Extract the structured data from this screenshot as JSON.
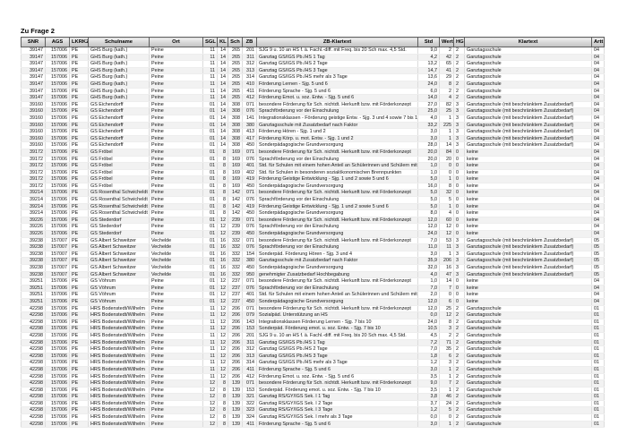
{
  "title": "Zu Frage 2",
  "klartext_values": {
    "ganztag": "Ganztagsschule",
    "ganztag_beschraenkt": "Ganztagsschule (mit beschränktem Zusatzbedarf)",
    "keine": "keine"
  },
  "table": {
    "columns": [
      {
        "key": "snr",
        "label": "SNR"
      },
      {
        "key": "ags",
        "label": "AGS"
      },
      {
        "key": "lkrkz",
        "label": "LKRKZ"
      },
      {
        "key": "schulname",
        "label": "Schulname"
      },
      {
        "key": "ort",
        "label": "Ort"
      },
      {
        "key": "sgl",
        "label": "SGL"
      },
      {
        "key": "kl",
        "label": "KL"
      },
      {
        "key": "sch",
        "label": "Sch"
      },
      {
        "key": "zb",
        "label": "ZB"
      },
      {
        "key": "zb_klartext",
        "label": "ZB-Klartext"
      },
      {
        "key": "std",
        "label": "Std"
      },
      {
        "key": "wert",
        "label": "Wert"
      },
      {
        "key": "hgt",
        "label": "HGT"
      },
      {
        "key": "klartext",
        "label": "Klartext"
      },
      {
        "key": "artt",
        "label": "Artt"
      }
    ],
    "groups": [
      {
        "snr": "39147",
        "ags": "157006",
        "lkrkz": "PE",
        "schulname": "GHS Burg (kath.)",
        "ort": "Peine",
        "sgl": "11",
        "kl": "14",
        "sch": "265",
        "entries": [
          {
            "zb": "201",
            "zb_klartext": "SJG 9 u. 10 an HS f. ä. Fachl.-diff. mit Freq. bis 20 Sch max. 4,5 Std.",
            "std": "9,0",
            "wert": "2",
            "hgt": "2",
            "klartext": "Ganztagsschule",
            "artt": "04"
          },
          {
            "zb": "311",
            "zb_klartext": "Ganztag GS/IGS Pb./HS 1 Tag",
            "std": "4,2",
            "wert": "42",
            "hgt": "2",
            "klartext": "Ganztagsschule",
            "artt": "04"
          },
          {
            "zb": "312",
            "zb_klartext": "Ganztag GS/IGS Pb./HS 2 Tage",
            "std": "13,2",
            "wert": "65",
            "hgt": "2",
            "klartext": "Ganztagsschule",
            "artt": "04"
          },
          {
            "zb": "313",
            "zb_klartext": "Ganztag GS/IGS Pb./HS 3 Tage",
            "std": "14,7",
            "wert": "41",
            "hgt": "2",
            "klartext": "Ganztagsschule",
            "artt": "04"
          },
          {
            "zb": "314",
            "zb_klartext": "Ganztag GS/IGS Pb./HS mehr als 3 Tage",
            "std": "13,6",
            "wert": "29",
            "hgt": "2",
            "klartext": "Ganztagsschule",
            "artt": "04"
          },
          {
            "zb": "410",
            "zb_klartext": "Förderung Lernen  - Sjg. 5 und 6",
            "std": "24,0",
            "wert": "8",
            "hgt": "2",
            "klartext": "Ganztagsschule",
            "artt": "04"
          },
          {
            "zb": "411",
            "zb_klartext": "Förderung Sprache  - Sjg. 5 und 6",
            "std": "6,0",
            "wert": "2",
            "hgt": "2",
            "klartext": "Ganztagsschule",
            "artt": "04"
          },
          {
            "zb": "412",
            "zb_klartext": "Förderung Emot. u. soz. Entw.  - Sjg. 5 und 6",
            "std": "14,0",
            "wert": "4",
            "hgt": "2",
            "klartext": "Ganztagsschule",
            "artt": "04"
          }
        ]
      },
      {
        "snr": "39160",
        "ags": "157006",
        "lkrkz": "PE",
        "schulname": "GS Eichendorff",
        "ort": "Peine",
        "sgl": "01",
        "kl": "14",
        "sch": "308",
        "entries": [
          {
            "zb": "071",
            "zb_klartext": "besondere Förderung für Sch. nichtdt. Herkunft bzw. mit Förderkonzept",
            "std": "27,0",
            "wert": "82",
            "hgt": "3",
            "klartext": "Ganztagsschule (mit beschränktem Zusatzbedarf)",
            "artt": "04"
          },
          {
            "zb": "076",
            "zb_klartext": "Sprachförderung vor der Einschulung",
            "std": "25,0",
            "wert": "25",
            "hgt": "3",
            "klartext": "Ganztagsschule (mit beschränktem Zusatzbedarf)",
            "artt": "04"
          },
          {
            "zb": "141",
            "zb_klartext": "Integrationsklassen - Förderung geistige Entw. - Sjg. 3 und 4 sowie 7 bis 10",
            "std": "4,0",
            "wert": "1",
            "hgt": "3",
            "klartext": "Ganztagsschule (mit beschränktem Zusatzbedarf)",
            "artt": "04"
          },
          {
            "zb": "380",
            "zb_klartext": "Ganztagsschule mit Zusatzbedarf nach Faktor",
            "std": "33,2",
            "wert": "225",
            "hgt": "3",
            "klartext": "Ganztagsschule (mit beschränktem Zusatzbedarf)",
            "artt": "04"
          },
          {
            "zb": "413",
            "zb_klartext": "Förderung Hören - Sjg. 1 und 2",
            "std": "3,0",
            "wert": "1",
            "hgt": "3",
            "klartext": "Ganztagsschule (mit beschränktem Zusatzbedarf)",
            "artt": "04"
          },
          {
            "zb": "417",
            "zb_klartext": "Förderung Körp. u. mot. Entw.  - Sjg. 1 und 2",
            "std": "3,0",
            "wert": "1",
            "hgt": "3",
            "klartext": "Ganztagsschule (mit beschränktem Zusatzbedarf)",
            "artt": "04"
          },
          {
            "zb": "450",
            "zb_klartext": "Sonderpädagogische Grundversorgung",
            "std": "28,0",
            "wert": "14",
            "hgt": "3",
            "klartext": "Ganztagsschule (mit beschränktem Zusatzbedarf)",
            "artt": "04"
          }
        ]
      },
      {
        "snr": "39172",
        "ags": "157006",
        "lkrkz": "PE",
        "schulname": "GS Fröbel",
        "ort": "Peine",
        "sgl": "01",
        "kl": "8",
        "sch": "169",
        "entries": [
          {
            "zb": "071",
            "zb_klartext": "besondere Förderung für Sch. nichtdt. Herkunft bzw. mit Förderkonzept",
            "std": "20,0",
            "wert": "84",
            "hgt": "0",
            "klartext": "keine",
            "artt": "04"
          },
          {
            "zb": "076",
            "zb_klartext": "Sprachförderung vor der Einschulung",
            "std": "20,0",
            "wert": "20",
            "hgt": "0",
            "klartext": "keine",
            "artt": "04"
          },
          {
            "zb": "401",
            "zb_klartext": "Std. für Schulen mit einem hohen Anteil an Schülerinnen und Schülern mit N",
            "std": "1,0",
            "wert": "0",
            "hgt": "0",
            "klartext": "keine",
            "artt": "04"
          },
          {
            "zb": "402",
            "zb_klartext": "Std. für Schulen in besonderen sozialökonomischen Brennpunkten",
            "std": "1,0",
            "wert": "0",
            "hgt": "0",
            "klartext": "keine",
            "artt": "04"
          },
          {
            "zb": "419",
            "zb_klartext": "Förderung Geistige Entwicklung - Sjg. 1 und 2 sowie 5 und 6",
            "std": "5,0",
            "wert": "1",
            "hgt": "0",
            "klartext": "keine",
            "artt": "04"
          },
          {
            "zb": "450",
            "zb_klartext": "Sonderpädagogische Grundversorgung",
            "std": "16,0",
            "wert": "8",
            "hgt": "0",
            "klartext": "keine",
            "artt": "04"
          }
        ]
      },
      {
        "snr": "39214",
        "ags": "157006",
        "lkrkz": "PE",
        "schulname": "GS Rosenthal Schwicheldt",
        "ort": "Peine",
        "sgl": "01",
        "kl": "8",
        "sch": "142",
        "entries": [
          {
            "zb": "071",
            "zb_klartext": "besondere Förderung für Sch. nichtdt. Herkunft bzw. mit Förderkonzept",
            "std": "5,0",
            "wert": "32",
            "hgt": "0",
            "klartext": "keine",
            "artt": "04"
          },
          {
            "zb": "076",
            "zb_klartext": "Sprachförderung vor der Einschulung",
            "std": "5,0",
            "wert": "5",
            "hgt": "0",
            "klartext": "keine",
            "artt": "04"
          },
          {
            "zb": "419",
            "zb_klartext": "Förderung Geistige Entwicklung - Sjg. 1 und 2 sowie 5 und 6",
            "std": "5,0",
            "wert": "1",
            "hgt": "0",
            "klartext": "keine",
            "artt": "04"
          },
          {
            "zb": "450",
            "zb_klartext": "Sonderpädagogische Grundversorgung",
            "std": "8,0",
            "wert": "4",
            "hgt": "0",
            "klartext": "keine",
            "artt": "04"
          }
        ]
      },
      {
        "snr": "39226",
        "ags": "157006",
        "lkrkz": "PE",
        "schulname": "GS Stederdorf",
        "ort": "Peine",
        "sgl": "01",
        "kl": "12",
        "sch": "239",
        "entries": [
          {
            "zb": "071",
            "zb_klartext": "besondere Förderung für Sch. nichtdt. Herkunft bzw. mit Förderkonzept",
            "std": "12,0",
            "wert": "60",
            "hgt": "0",
            "klartext": "keine",
            "artt": "04"
          },
          {
            "zb": "076",
            "zb_klartext": "Sprachförderung vor der Einschulung",
            "std": "12,0",
            "wert": "12",
            "hgt": "0",
            "klartext": "keine",
            "artt": "04"
          },
          {
            "zb": "450",
            "zb_klartext": "Sonderpädagogische Grundversorgung",
            "std": "24,0",
            "wert": "12",
            "hgt": "0",
            "klartext": "keine",
            "artt": "04"
          }
        ]
      },
      {
        "snr": "39238",
        "ags": "157007",
        "lkrkz": "PE",
        "schulname": "GS Albert Schweitzer",
        "ort": "Vechelde",
        "sgl": "01",
        "kl": "16",
        "sch": "332",
        "entries": [
          {
            "zb": "071",
            "zb_klartext": "besondere Förderung für Sch. nichtdt. Herkunft bzw. mit Förderkonzept",
            "std": "7,0",
            "wert": "53",
            "hgt": "3",
            "klartext": "Ganztagsschule (mit beschränktem Zusatzbedarf)",
            "artt": "05"
          },
          {
            "zb": "076",
            "zb_klartext": "Sprachförderung vor der Einschulung",
            "std": "11,0",
            "wert": "11",
            "hgt": "3",
            "klartext": "Ganztagsschule (mit beschränktem Zusatzbedarf)",
            "artt": "05"
          },
          {
            "zb": "154",
            "zb_klartext": "Sonderpäd. Förderung Hören - Sjg. 3 und 4",
            "std": "3,0",
            "wert": "1",
            "hgt": "3",
            "klartext": "Ganztagsschule (mit beschränktem Zusatzbedarf)",
            "artt": "05"
          },
          {
            "zb": "380",
            "zb_klartext": "Ganztagsschule mit Zusatzbedarf nach Faktor",
            "std": "35,9",
            "wert": "206",
            "hgt": "3",
            "klartext": "Ganztagsschule (mit beschränktem Zusatzbedarf)",
            "artt": "05"
          },
          {
            "zb": "450",
            "zb_klartext": "Sonderpädagogische Grundversorgung",
            "std": "32,0",
            "wert": "16",
            "hgt": "3",
            "klartext": "Ganztagsschule (mit beschränktem Zusatzbedarf)",
            "artt": "05"
          },
          {
            "zb": "950",
            "zb_klartext": "genehmigter Zusatzbedarf Hochbegabung",
            "std": "4,0",
            "wert": "47",
            "hgt": "3",
            "klartext": "Ganztagsschule (mit beschränktem Zusatzbedarf)",
            "artt": "05"
          }
        ]
      },
      {
        "snr": "39251",
        "ags": "157006",
        "lkrkz": "PE",
        "schulname": "GS Vöhrum",
        "ort": "Peine",
        "sgl": "01",
        "kl": "12",
        "sch": "237",
        "entries": [
          {
            "zb": "071",
            "zb_klartext": "besondere Förderung für Sch. nichtdt. Herkunft bzw. mit Förderkonzept",
            "std": "1,0",
            "wert": "14",
            "hgt": "0",
            "klartext": "keine",
            "artt": "04"
          },
          {
            "zb": "076",
            "zb_klartext": "Sprachförderung vor der Einschulung",
            "std": "7,0",
            "wert": "7",
            "hgt": "0",
            "klartext": "keine",
            "artt": "04"
          },
          {
            "zb": "401",
            "zb_klartext": "Std. für Schulen mit einem hohen Anteil an Schülerinnen und Schülern mit N",
            "std": "2,0",
            "wert": "0",
            "hgt": "0",
            "klartext": "keine",
            "artt": "04"
          },
          {
            "zb": "450",
            "zb_klartext": "Sonderpädagogische Grundversorgung",
            "std": "12,0",
            "wert": "6",
            "hgt": "0",
            "klartext": "keine",
            "artt": "04"
          }
        ]
      },
      {
        "snr": "42298",
        "ags": "157006",
        "lkrkz": "PE",
        "schulname": "HRS Bodenstedt/Wilhelm",
        "ort": "Peine",
        "sgl": "11",
        "kl": "12",
        "sch": "206",
        "entries": [
          {
            "zb": "071",
            "zb_klartext": "besondere Förderung für Sch. nichtdt. Herkunft bzw. mit Förderkonzept",
            "std": "12,0",
            "wert": "25",
            "hgt": "2",
            "klartext": "Ganztagsschule",
            "artt": "01"
          },
          {
            "zb": "079",
            "zb_klartext": "Sozialpäd. Unterstützung an HS",
            "std": "0,0",
            "wert": "12",
            "hgt": "2",
            "klartext": "Ganztagsschule",
            "artt": "01"
          },
          {
            "zb": "143",
            "zb_klartext": "Integrationsklassen  Förderung Lernen - Sjg. 7 bis 10",
            "std": "24,0",
            "wert": "8",
            "hgt": "2",
            "klartext": "Ganztagsschule",
            "artt": "01"
          },
          {
            "zb": "153",
            "zb_klartext": "Sonderpäd. Förderung emot. u. soz. Entw.  - Sjg. 7 bis 10",
            "std": "10,5",
            "wert": "3",
            "hgt": "2",
            "klartext": "Ganztagsschule",
            "artt": "01"
          },
          {
            "zb": "201",
            "zb_klartext": "SJG 9 u. 10 an HS f. ä. Fachl.-diff. mit Freq. bis 20 Sch max. 4,5 Std.",
            "std": "4,5",
            "wert": "2",
            "hgt": "2",
            "klartext": "Ganztagsschule",
            "artt": "01"
          },
          {
            "zb": "311",
            "zb_klartext": "Ganztag GS/IGS Pb./HS 1 Tag",
            "std": "7,2",
            "wert": "71",
            "hgt": "2",
            "klartext": "Ganztagsschule",
            "artt": "01"
          },
          {
            "zb": "312",
            "zb_klartext": "Ganztag GS/IGS Pb./HS 2 Tage",
            "std": "7,0",
            "wert": "35",
            "hgt": "2",
            "klartext": "Ganztagsschule",
            "artt": "01"
          },
          {
            "zb": "313",
            "zb_klartext": "Ganztag GS/IGS Pb./HS 3 Tage",
            "std": "1,8",
            "wert": "6",
            "hgt": "2",
            "klartext": "Ganztagsschule",
            "artt": "01"
          },
          {
            "zb": "314",
            "zb_klartext": "Ganztag GS/IGS Pb./HS mehr als 3 Tage",
            "std": "1,2",
            "wert": "3",
            "hgt": "2",
            "klartext": "Ganztagsschule",
            "artt": "01"
          },
          {
            "zb": "411",
            "zb_klartext": "Förderung Sprache  - Sjg. 5 und 6",
            "std": "3,0",
            "wert": "1",
            "hgt": "2",
            "klartext": "Ganztagsschule",
            "artt": "01"
          },
          {
            "zb": "412",
            "zb_klartext": "Förderung Emot. u. soz. Entw.  - Sjg. 5 und 6",
            "std": "3,5",
            "wert": "1",
            "hgt": "2",
            "klartext": "Ganztagsschule",
            "artt": "01"
          }
        ]
      },
      {
        "snr": "42298",
        "ags": "157006",
        "lkrkz": "PE",
        "schulname": "HRS Bodenstedt/Wilhelm",
        "ort": "Peine",
        "sgl": "12",
        "kl": "8",
        "sch": "139",
        "entries": [
          {
            "zb": "071",
            "zb_klartext": "besondere Förderung für Sch. nichtdt. Herkunft bzw. mit Förderkonzept",
            "std": "9,0",
            "wert": "7",
            "hgt": "2",
            "klartext": "Ganztagsschule",
            "artt": "01"
          },
          {
            "zb": "153",
            "zb_klartext": "Sonderpäd. Förderung emot. u. soz. Entw.  - Sjg. 7 bis 10",
            "std": "3,5",
            "wert": "1",
            "hgt": "2",
            "klartext": "Ganztagsschule",
            "artt": "01"
          },
          {
            "zb": "321",
            "zb_klartext": "Ganztag RS/GY/IGS Sek. I  1 Tag",
            "std": "3,8",
            "wert": "46",
            "hgt": "2",
            "klartext": "Ganztagsschule",
            "artt": "01"
          },
          {
            "zb": "322",
            "zb_klartext": "Ganztag RS/GY/IGS Sek. I  2 Tage",
            "std": "3,7",
            "wert": "24",
            "hgt": "2",
            "klartext": "Ganztagsschule",
            "artt": "01"
          },
          {
            "zb": "323",
            "zb_klartext": "Ganztag RS/GY/IGS Sek. I  3 Tage",
            "std": "1,2",
            "wert": "5",
            "hgt": "2",
            "klartext": "Ganztagsschule",
            "artt": "01"
          },
          {
            "zb": "324",
            "zb_klartext": "Ganztag RS/GY/IGS Sek. I  mehr als 3 Tage",
            "std": "0,0",
            "wert": "0",
            "hgt": "2",
            "klartext": "Ganztagsschule",
            "artt": "01"
          },
          {
            "zb": "411",
            "zb_klartext": "Förderung Sprache  - Sjg. 5 und 6",
            "std": "3,0",
            "wert": "1",
            "hgt": "2",
            "klartext": "Ganztagsschule",
            "artt": "01"
          }
        ]
      }
    ]
  }
}
